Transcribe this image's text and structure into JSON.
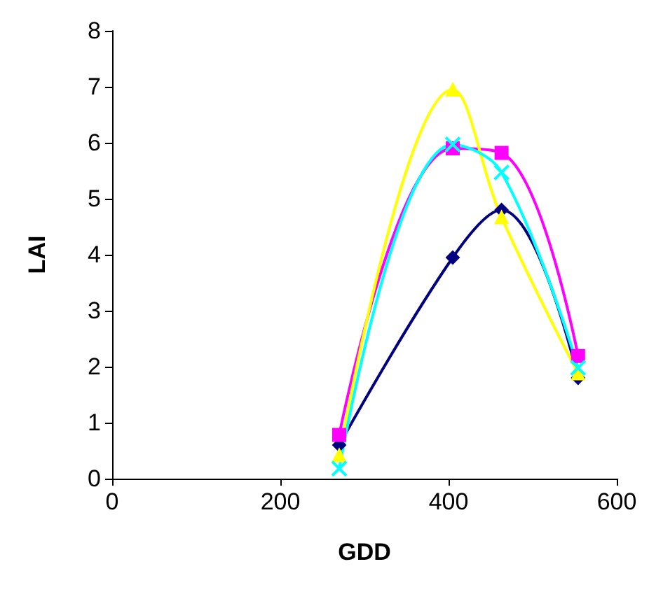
{
  "chart_data": {
    "type": "line",
    "xlabel": "GDD",
    "ylabel": "LAI",
    "xlim": [
      0,
      600
    ],
    "xticks": [
      0,
      200,
      400,
      600
    ],
    "ylim": [
      0,
      8
    ],
    "yticks": [
      0,
      1,
      2,
      3,
      4,
      5,
      6,
      7,
      8
    ],
    "grid": false,
    "line_style": "solid",
    "series": [
      {
        "color": "#000080",
        "marker": "diamond",
        "x": [
          270,
          405,
          463,
          554
        ],
        "values": [
          0.6,
          3.95,
          4.8,
          1.8
        ]
      },
      {
        "color": "#ff00ff",
        "marker": "square",
        "x": [
          270,
          405,
          463,
          554
        ],
        "values": [
          0.78,
          5.9,
          5.82,
          2.19
        ]
      },
      {
        "color": "#ffff00",
        "marker": "triangle",
        "x": [
          270,
          405,
          463,
          554
        ],
        "values": [
          0.42,
          6.95,
          4.67,
          1.88
        ]
      },
      {
        "color": "#00ffff",
        "marker": "cross",
        "x": [
          270,
          405,
          463,
          554
        ],
        "values": [
          0.18,
          5.97,
          5.47,
          1.98
        ]
      }
    ]
  }
}
